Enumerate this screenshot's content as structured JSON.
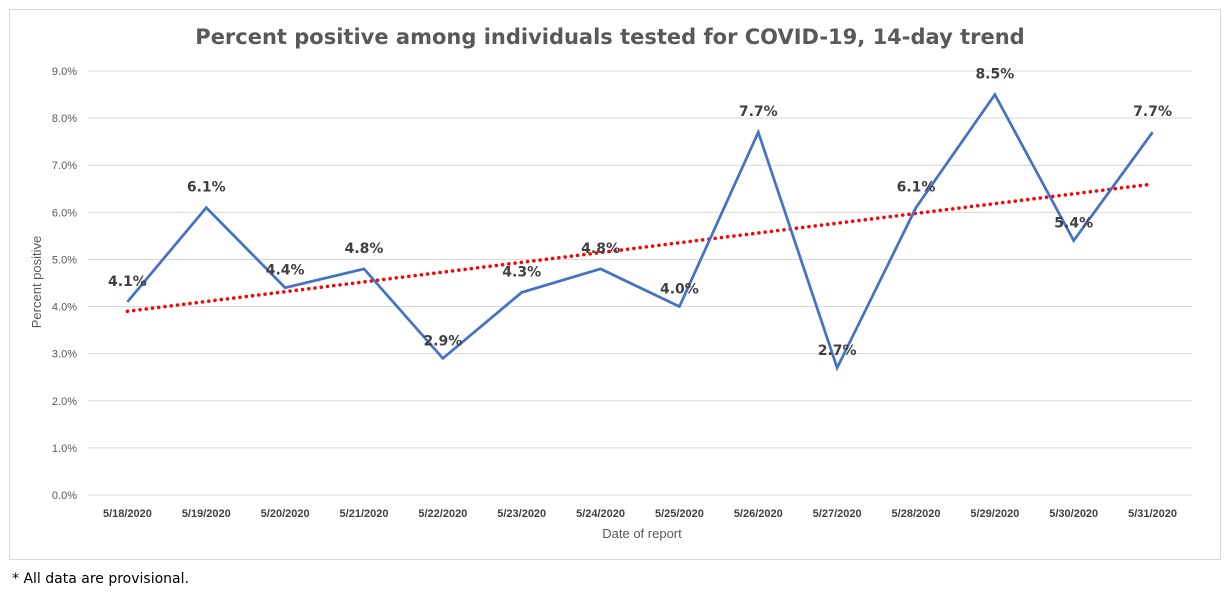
{
  "chart_data": {
    "type": "line",
    "title": "Percent positive among individuals tested for COVID-19, 14-day trend",
    "xlabel": "Date of report",
    "ylabel": "Percent positive",
    "categories": [
      "5/18/2020",
      "5/19/2020",
      "5/20/2020",
      "5/21/2020",
      "5/22/2020",
      "5/23/2020",
      "5/24/2020",
      "5/25/2020",
      "5/26/2020",
      "5/27/2020",
      "5/28/2020",
      "5/29/2020",
      "5/30/2020",
      "5/31/2020"
    ],
    "series": [
      {
        "values": [
          4.1,
          6.1,
          4.4,
          4.8,
          2.9,
          4.3,
          4.8,
          4.0,
          7.7,
          2.7,
          6.1,
          8.5,
          5.4,
          7.7
        ],
        "data_labels": [
          "4.1%",
          "6.1%",
          "4.4%",
          "4.8%",
          "2.9%",
          "4.3%",
          "4.8%",
          "4.0%",
          "7.7%",
          "2.7%",
          "6.1%",
          "8.5%",
          "5.4%",
          "7.7%"
        ],
        "color": "#4472c4"
      }
    ],
    "trendline": {
      "type": "linear",
      "start": 3.9,
      "end": 6.6,
      "color": "#ff0000",
      "style": "dotted"
    },
    "ylim": [
      0,
      9
    ],
    "yticks": [
      "0.0%",
      "1.0%",
      "2.0%",
      "3.0%",
      "4.0%",
      "5.0%",
      "6.0%",
      "7.0%",
      "8.0%",
      "9.0%"
    ],
    "grid": true,
    "legend": "none"
  },
  "footnote": "* All data are provisional."
}
